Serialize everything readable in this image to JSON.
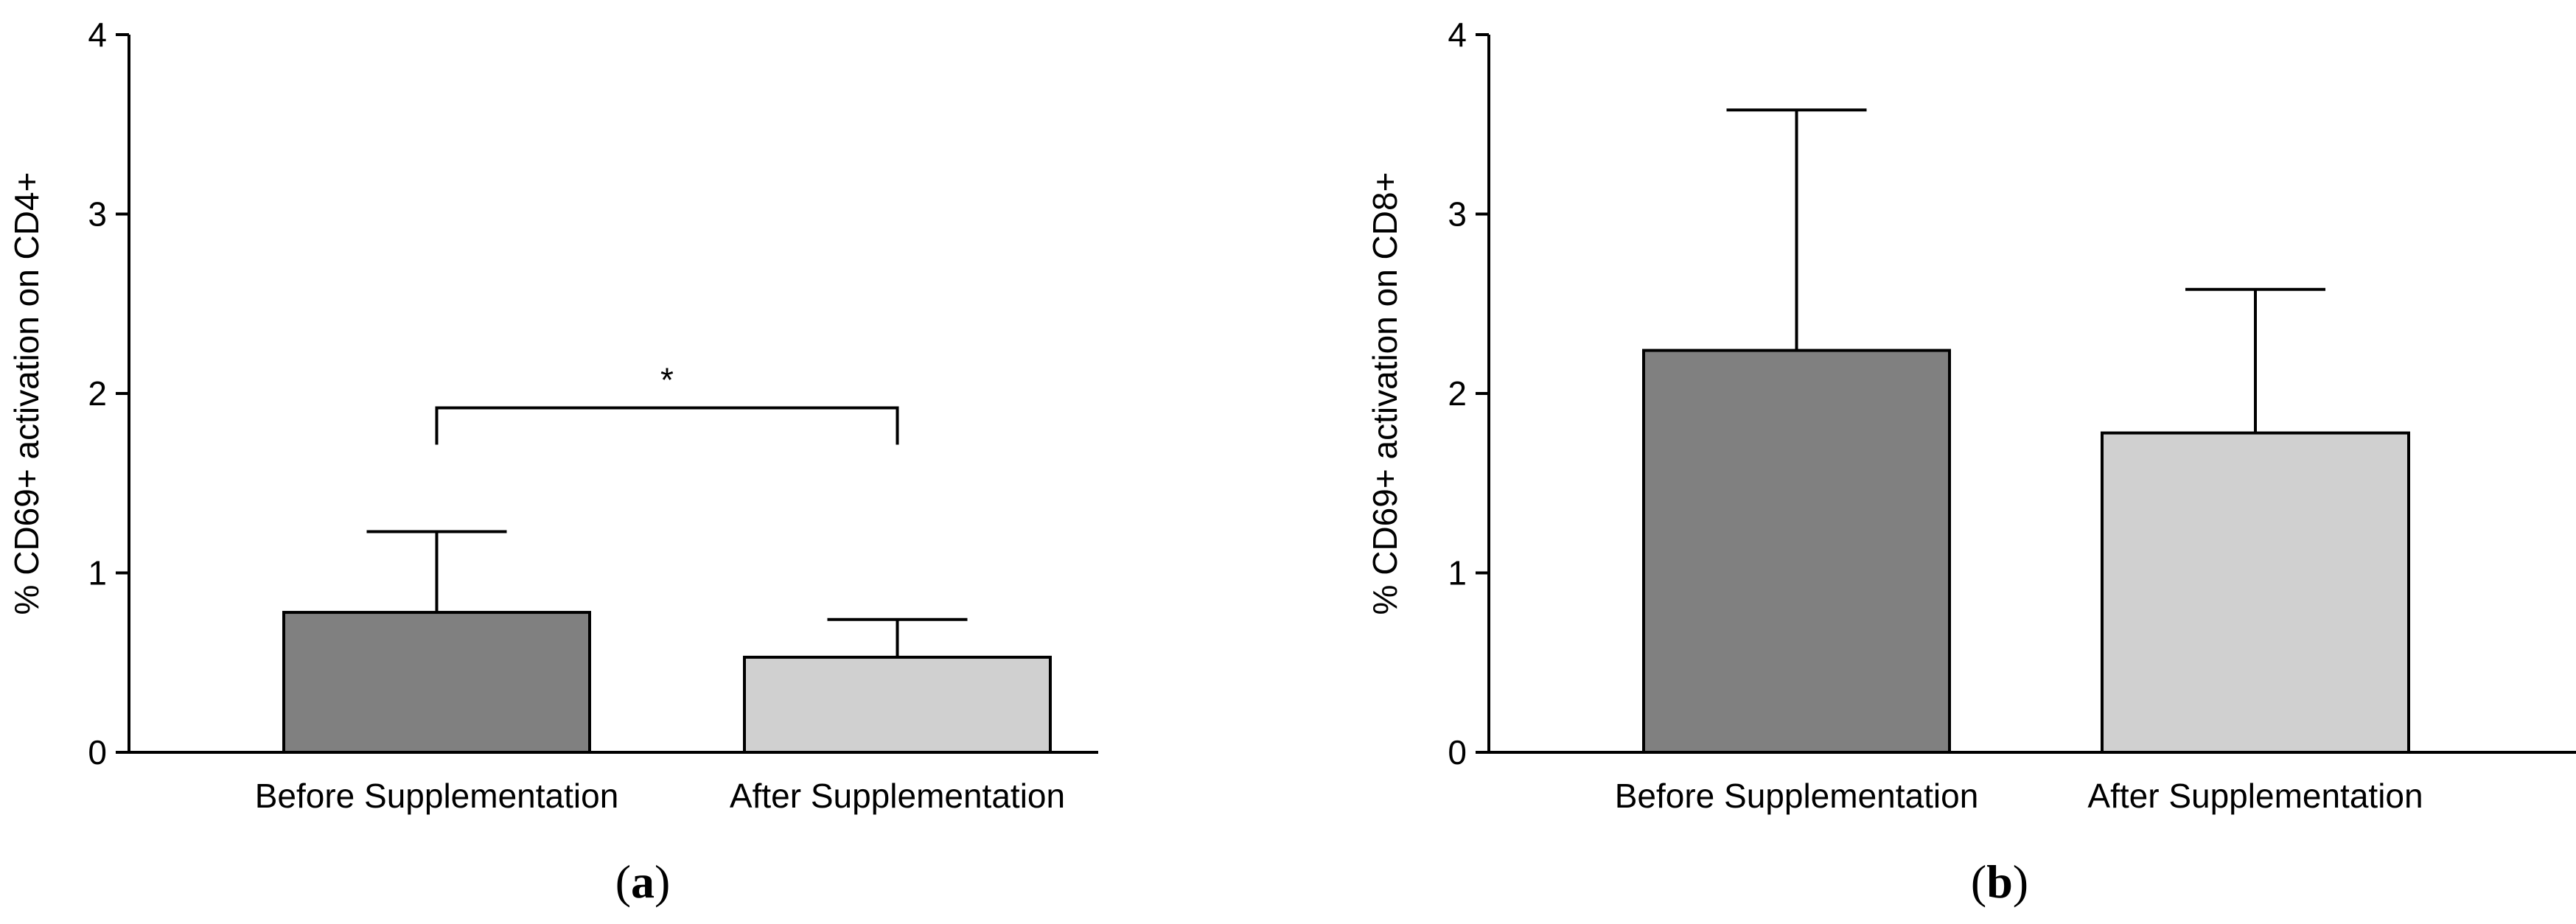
{
  "chart_data": [
    {
      "type": "bar",
      "panel_label": "(a)",
      "panel_letter": "a",
      "categories": [
        "Before Supplementation",
        "After Supplementation"
      ],
      "values": [
        0.78,
        0.53
      ],
      "error_upper": [
        1.23,
        0.74
      ],
      "bar_colors": [
        "#808080",
        "#d0d0d0"
      ],
      "title": "",
      "xlabel": "",
      "ylabel": "% CD69+ activation on CD4+",
      "ylim": [
        0,
        4
      ],
      "yticks": [
        0,
        1,
        2,
        3,
        4
      ],
      "significance": {
        "from": 0,
        "to": 1,
        "level": 1.92,
        "label": "*"
      }
    },
    {
      "type": "bar",
      "panel_label": "(b)",
      "panel_letter": "b",
      "categories": [
        "Before Supplementation",
        "After Supplementation"
      ],
      "values": [
        2.24,
        1.78
      ],
      "error_upper": [
        3.58,
        2.58
      ],
      "bar_colors": [
        "#808080",
        "#d0d0d0"
      ],
      "title": "",
      "xlabel": "",
      "ylabel": "% CD69+ activation on CD8+",
      "ylim": [
        0,
        4
      ],
      "yticks": [
        0,
        1,
        2,
        3,
        4
      ]
    }
  ]
}
